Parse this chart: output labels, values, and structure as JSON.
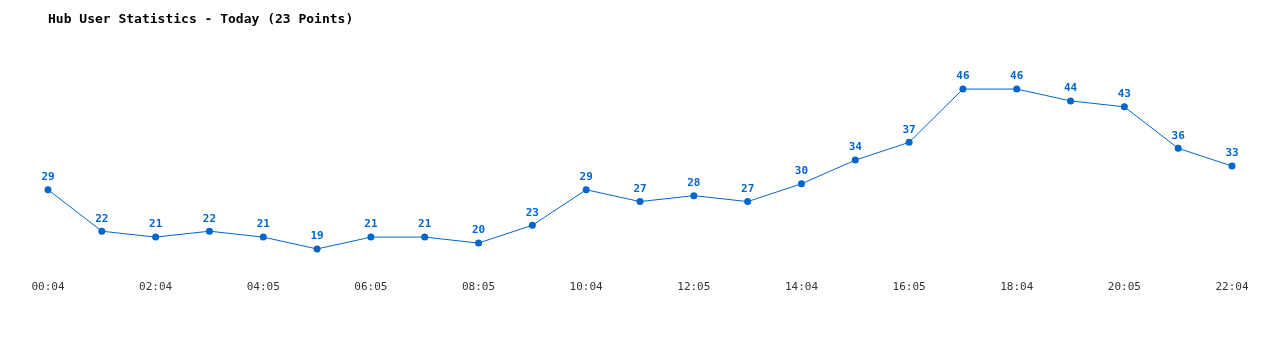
{
  "chart_data": {
    "type": "line",
    "title": "Hub User Statistics - Today (23 Points)",
    "categories": [
      "00:04",
      null,
      "02:04",
      null,
      "04:05",
      null,
      "06:05",
      null,
      "08:05",
      null,
      "10:04",
      null,
      "12:05",
      null,
      "14:04",
      null,
      "16:05",
      null,
      "18:04",
      null,
      "20:05",
      null,
      "22:04"
    ],
    "series": [
      {
        "color": "#0066cc",
        "values": [
          29,
          22,
          21,
          22,
          21,
          19,
          21,
          21,
          20,
          23,
          29,
          27,
          28,
          27,
          30,
          34,
          37,
          46,
          46,
          44,
          43,
          36,
          33
        ]
      }
    ],
    "data_labels": true,
    "grid": false,
    "legend": false,
    "marker": "circle",
    "line_style": "solid",
    "tick_labels": "x"
  }
}
